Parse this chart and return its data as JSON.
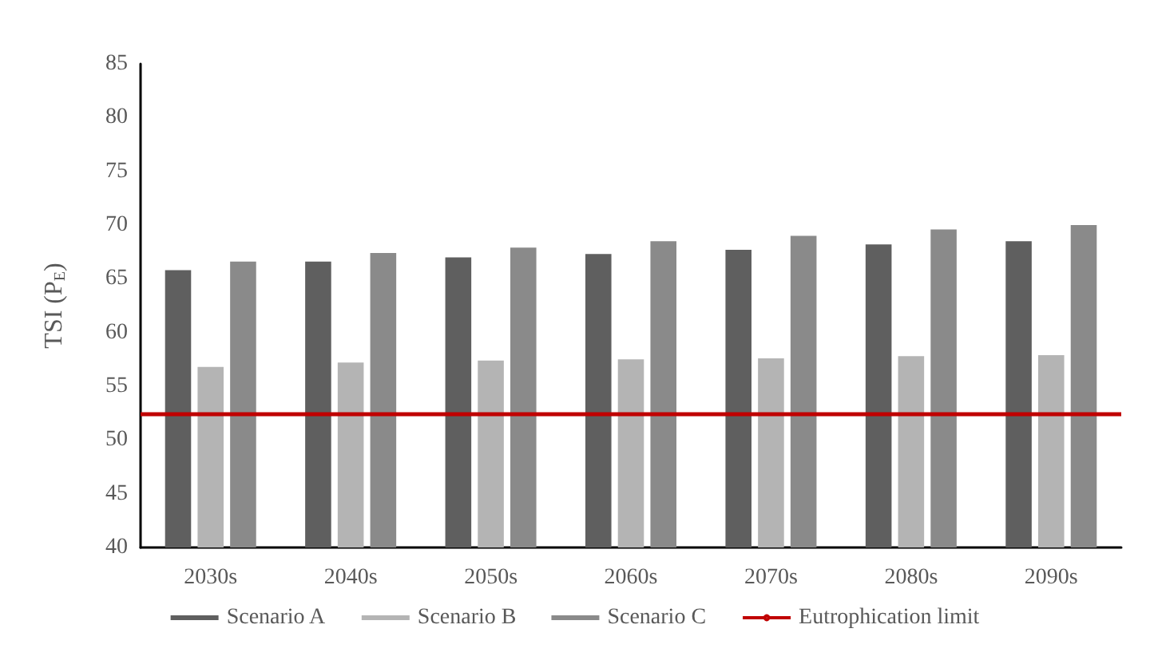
{
  "chart_data": {
    "type": "bar",
    "ylabel": "TSI (P$_{E}$)",
    "categories": [
      "2030s",
      "2040s",
      "2050s",
      "2060s",
      "2070s",
      "2080s",
      "2090s"
    ],
    "series": [
      {
        "name": "Scenario A",
        "color": "#5f5f5f",
        "values": [
          65.8,
          66.6,
          67.0,
          67.3,
          67.7,
          68.2,
          68.5
        ]
      },
      {
        "name": "Scenario B",
        "color": "#b4b4b4",
        "values": [
          56.8,
          57.2,
          57.4,
          57.5,
          57.6,
          57.8,
          57.9
        ]
      },
      {
        "name": "Scenario C",
        "color": "#8a8a8a",
        "values": [
          66.6,
          67.4,
          67.9,
          68.5,
          69.0,
          69.6,
          70.0
        ]
      }
    ],
    "ref_lines": [
      {
        "axis": "y",
        "value": 52.4,
        "label": "Eutrophication limit",
        "color": "#c00000",
        "line_style": "solid"
      }
    ],
    "ylim": [
      40,
      85
    ],
    "yticks": [
      40,
      45,
      50,
      55,
      60,
      65,
      70,
      75,
      80,
      85
    ],
    "grid": false,
    "legend": "bottom"
  }
}
